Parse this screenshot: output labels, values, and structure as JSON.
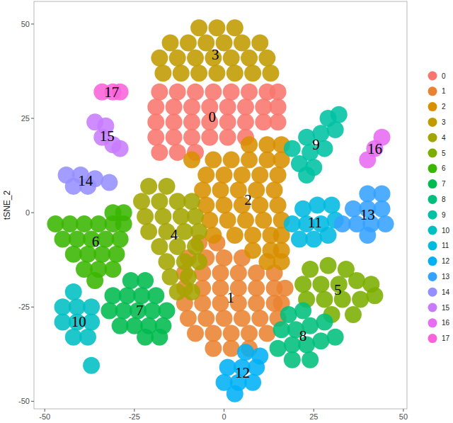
{
  "chart_data": {
    "type": "scatter",
    "y_label": "tSNE_2",
    "xlim": [
      -53,
      51
    ],
    "ylim": [
      -52,
      56
    ],
    "xticks": [
      -50,
      -25,
      0,
      25,
      50
    ],
    "yticks": [
      -50,
      -25,
      0,
      25,
      50
    ],
    "grid": false,
    "legend": "right",
    "series": [
      {
        "name": "0",
        "color": "#F8766D",
        "x": [
          -18,
          -13,
          -8,
          -3,
          2,
          7,
          12,
          15,
          -19,
          -14,
          -9,
          -4,
          1,
          6,
          11,
          15,
          -19,
          -14,
          -9,
          -4,
          1,
          6,
          11,
          15,
          -19,
          -14,
          -9,
          -4,
          1,
          6,
          -18,
          -13,
          -8
        ],
        "values": [
          32,
          32,
          32,
          32,
          32,
          32,
          32,
          32,
          28,
          28,
          28,
          28,
          28,
          28,
          28,
          28,
          24,
          24,
          24,
          24,
          24,
          24,
          24,
          24,
          20,
          20,
          20,
          20,
          20,
          20,
          16,
          16,
          16
        ]
      },
      {
        "name": "1",
        "color": "#EA8331",
        "x": [
          -7,
          -2,
          -10,
          -5,
          0,
          5,
          -11,
          -6,
          -1,
          4,
          9,
          14,
          -11,
          -6,
          -1,
          4,
          9,
          14,
          17,
          -11,
          -6,
          -1,
          4,
          9,
          14,
          16,
          -10,
          -5,
          0,
          5,
          10,
          15,
          -8,
          -3,
          2,
          7,
          12,
          -3,
          2,
          7
        ],
        "values": [
          -8,
          -8,
          -12,
          -12,
          -12,
          -12,
          -16,
          -16,
          -16,
          -16,
          -16,
          -16,
          -20,
          -20,
          -20,
          -20,
          -20,
          -20,
          -20,
          -24,
          -24,
          -24,
          -24,
          -24,
          -24,
          -24,
          -28,
          -28,
          -28,
          -28,
          -28,
          -28,
          -32,
          -32,
          -32,
          -32,
          -32,
          -36,
          -36,
          -36
        ]
      },
      {
        "name": "2",
        "color": "#D89000",
        "x": [
          7,
          12,
          16,
          -9,
          -3,
          2,
          7,
          12,
          16,
          -5,
          0,
          5,
          10,
          15,
          -6,
          -1,
          4,
          9,
          14,
          -5,
          0,
          5,
          10,
          15,
          -4,
          1,
          6,
          11,
          16,
          -3,
          3,
          8,
          13,
          16,
          8,
          13,
          16,
          12,
          16
        ],
        "values": [
          18,
          18,
          18,
          14,
          14,
          14,
          14,
          14,
          14,
          10,
          10,
          10,
          10,
          10,
          6,
          6,
          6,
          6,
          6,
          2,
          2,
          2,
          2,
          2,
          -2,
          -2,
          -2,
          -2,
          -2,
          -6,
          -6,
          -6,
          -6,
          -6,
          -10,
          -10,
          -10,
          -13,
          -13
        ]
      },
      {
        "name": "3",
        "color": "#C09B00",
        "x": [
          -7,
          -2,
          3,
          -15,
          -10,
          -5,
          0,
          5,
          10,
          -18,
          -13,
          -8,
          -3,
          2,
          7,
          12,
          -17,
          -12,
          -7,
          -2,
          3,
          8,
          13
        ],
        "values": [
          49,
          49,
          49,
          45,
          45,
          45,
          45,
          45,
          45,
          41,
          41,
          41,
          41,
          41,
          41,
          41,
          37,
          37,
          37,
          37,
          37,
          37,
          37
        ]
      },
      {
        "name": "4",
        "color": "#A3A500",
        "x": [
          -21,
          -16,
          -23,
          -18,
          -13,
          -9,
          -22,
          -17,
          -12,
          -8,
          -21,
          -16,
          -11,
          -7,
          -18,
          -13,
          -8,
          -16,
          -11,
          -7,
          -15,
          -10,
          -13,
          -9
        ],
        "values": [
          7,
          7,
          3,
          3,
          3,
          3,
          -1,
          -1,
          -1,
          -1,
          -5,
          -5,
          -5,
          -5,
          -9,
          -9,
          -9,
          -13,
          -13,
          -13,
          -17,
          -17,
          -21,
          -21
        ]
      },
      {
        "name": "5",
        "color": "#7CAE00",
        "x": [
          24,
          29,
          34,
          22,
          27,
          32,
          37,
          41,
          23,
          28,
          33,
          38,
          42,
          30,
          36
        ],
        "values": [
          -15,
          -14,
          -15,
          -19,
          -19,
          -19,
          -18,
          -19,
          -23,
          -23,
          -23,
          -23,
          -22,
          -27,
          -27
        ]
      },
      {
        "name": "6",
        "color": "#39B600",
        "x": [
          -31,
          -28,
          -47,
          -43,
          -39,
          -35,
          -31,
          -28,
          -45,
          -41,
          -37,
          -33,
          -29,
          -42,
          -38,
          -34,
          -30,
          -39,
          -35,
          -31,
          -36
        ],
        "values": [
          0,
          0,
          -3,
          -3,
          -3,
          -3,
          -3,
          -3,
          -7,
          -7,
          -7,
          -7,
          -7,
          -11,
          -11,
          -11,
          -11,
          -15,
          -15,
          -15,
          -18
        ]
      },
      {
        "name": "7",
        "color": "#00BB4E",
        "x": [
          -26,
          -22,
          -31,
          -27,
          -23,
          -19,
          -32,
          -28,
          -24,
          -20,
          -16,
          -29,
          -25,
          -21,
          -17,
          -22,
          -18
        ],
        "values": [
          -18,
          -18,
          -22,
          -22,
          -22,
          -22,
          -26,
          -26,
          -26,
          -26,
          -26,
          -30,
          -30,
          -30,
          -30,
          -33,
          -33
        ]
      },
      {
        "name": "8",
        "color": "#00BF7D",
        "x": [
          18,
          22,
          16,
          20,
          24,
          28,
          15,
          19,
          23,
          27,
          31,
          19,
          24
        ],
        "values": [
          -27,
          -26,
          -31,
          -31,
          -30,
          -29,
          -36,
          -35,
          -35,
          -34,
          -33,
          -39,
          -39
        ]
      },
      {
        "name": "9",
        "color": "#00C1A3",
        "x": [
          32,
          29,
          31,
          27,
          23,
          19,
          24,
          28,
          21,
          25,
          23
        ],
        "values": [
          26,
          25,
          22,
          21,
          20,
          17,
          16,
          17,
          13,
          12,
          10
        ]
      },
      {
        "name": "10",
        "color": "#00BFC4",
        "x": [
          -42,
          -45,
          -41,
          -37,
          -45,
          -41,
          -37,
          -42,
          -38,
          -37
        ],
        "values": [
          -21,
          -25,
          -25,
          -25,
          -29,
          -29,
          -29,
          -33,
          -33,
          -40.5
        ]
      },
      {
        "name": "11",
        "color": "#00BAE0",
        "x": [
          22,
          26,
          30,
          19,
          23,
          27,
          31,
          21,
          25,
          29
        ],
        "values": [
          1,
          2,
          2,
          -3,
          -3,
          -3,
          -2,
          -7,
          -7,
          -6
        ]
      },
      {
        "name": "12",
        "color": "#00B0F6",
        "x": [
          6,
          10,
          1,
          5,
          9,
          0,
          4,
          8,
          3
        ],
        "values": [
          -37,
          -38,
          -41,
          -41,
          -41,
          -45,
          -45,
          -45,
          -48
        ]
      },
      {
        "name": "13",
        "color": "#35A2FF",
        "x": [
          40,
          44,
          36,
          40,
          44,
          33,
          37,
          41,
          45,
          40
        ],
        "values": [
          5,
          5,
          1,
          1,
          1,
          -3,
          -3,
          -3,
          -3,
          -6
        ]
      },
      {
        "name": "14",
        "color": "#9590FF",
        "x": [
          -44,
          -40,
          -36,
          -32,
          -42,
          -38
        ],
        "values": [
          10,
          10,
          9,
          8,
          7,
          7
        ]
      },
      {
        "name": "15",
        "color": "#C77CFF",
        "x": [
          -36,
          -33,
          -34,
          -31,
          -29
        ],
        "values": [
          24,
          23,
          20,
          18,
          17
        ]
      },
      {
        "name": "16",
        "color": "#E76BF3",
        "x": [
          44,
          42,
          40
        ],
        "values": [
          20,
          17,
          14
        ]
      },
      {
        "name": "17",
        "color": "#FA62DB",
        "x": [
          -34,
          -31,
          -29
        ],
        "values": [
          32,
          32,
          32
        ]
      }
    ]
  }
}
